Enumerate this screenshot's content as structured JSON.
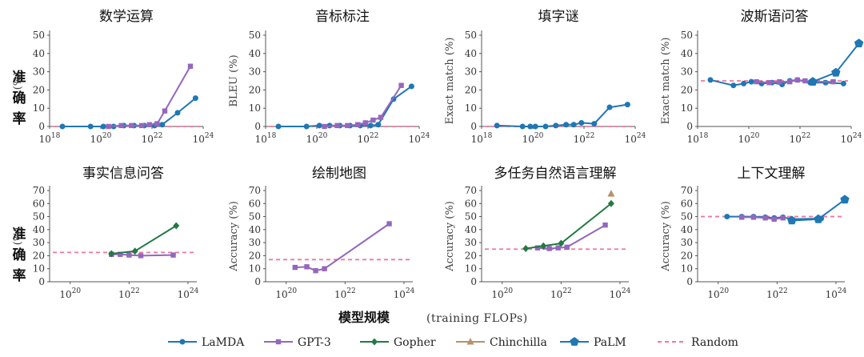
{
  "figure": {
    "row_label_chars": [
      "准",
      "确",
      "率"
    ],
    "x_title": "模型规模",
    "x_subtitle": "(training FLOPs)"
  },
  "colors": {
    "LaMDA": "#1f77b4",
    "GPT-3": "#9467bd",
    "Gopher": "#217a43",
    "Chinchilla": "#b8916a",
    "PaLM": "#1f77b4",
    "Random": "#f0789e"
  },
  "legend": [
    {
      "name": "LaMDA",
      "marker": "circle"
    },
    {
      "name": "GPT-3",
      "marker": "square"
    },
    {
      "name": "Gopher",
      "marker": "diamond"
    },
    {
      "name": "Chinchilla",
      "marker": "triangle"
    },
    {
      "name": "PaLM",
      "marker": "pentagon"
    },
    {
      "name": "Random",
      "marker": "dash"
    }
  ],
  "chart_data": [
    {
      "type": "line",
      "title": "数学运算",
      "ylabel": "(%)",
      "x_scale": "log",
      "xlim_exp": [
        18,
        24
      ],
      "xticks_exp": [
        18,
        20,
        22,
        24
      ],
      "ylim": [
        0,
        50
      ],
      "yticks": [
        0,
        10,
        20,
        30,
        40,
        50
      ],
      "random": 0,
      "series": [
        {
          "name": "LaMDA",
          "x_exp": [
            18.5,
            19.6,
            20.1,
            20.5,
            20.9,
            21.3,
            21.7,
            22.1,
            22.4,
            23.0,
            23.7
          ],
          "y": [
            0,
            0,
            0,
            0,
            0.5,
            0.5,
            0.5,
            0.5,
            1,
            7.5,
            15.5
          ]
        },
        {
          "name": "GPT-3",
          "x_exp": [
            20.3,
            20.8,
            21.2,
            21.6,
            21.9,
            22.2,
            22.5,
            23.5
          ],
          "y": [
            0,
            0.5,
            0.5,
            0.5,
            1,
            1.5,
            8.5,
            33
          ]
        }
      ]
    },
    {
      "type": "line",
      "title": "音标标注",
      "ylabel": "BLEU (%)",
      "x_scale": "log",
      "xlim_exp": [
        18,
        24
      ],
      "xticks_exp": [
        18,
        20,
        22,
        24
      ],
      "ylim": [
        0,
        50
      ],
      "yticks": [
        0,
        10,
        20,
        30,
        40,
        50
      ],
      "random": 0,
      "series": [
        {
          "name": "LaMDA",
          "x_exp": [
            18.5,
            19.6,
            20.1,
            20.5,
            20.9,
            21.3,
            21.7,
            22.1,
            22.4,
            23.0,
            23.7
          ],
          "y": [
            0,
            0,
            0.5,
            0.5,
            0.5,
            0.5,
            0.5,
            0.5,
            1,
            15,
            22
          ]
        },
        {
          "name": "GPT-3",
          "x_exp": [
            20.3,
            20.8,
            21.2,
            21.6,
            21.9,
            22.2,
            22.5,
            23.3
          ],
          "y": [
            0,
            0.5,
            0.5,
            1,
            2,
            3.5,
            5,
            22.5
          ]
        }
      ]
    },
    {
      "type": "line",
      "title": "填字谜",
      "ylabel": "Exact match (%)",
      "x_scale": "log",
      "xlim_exp": [
        18,
        24
      ],
      "xticks_exp": [
        18,
        20,
        22,
        24
      ],
      "ylim": [
        0,
        50
      ],
      "yticks": [
        0,
        10,
        20,
        30,
        40,
        50
      ],
      "random": 0,
      "series": [
        {
          "name": "LaMDA",
          "x_exp": [
            18.6,
            19.6,
            19.9,
            20.1,
            20.5,
            20.9,
            21.3,
            21.6,
            21.9,
            22.4,
            23.0,
            23.7
          ],
          "y": [
            0.5,
            0,
            0,
            0,
            0,
            0.5,
            1,
            1,
            2,
            1.5,
            10.5,
            12
          ]
        }
      ]
    },
    {
      "type": "line",
      "title": "波斯语问答",
      "ylabel": "Exact match (%)",
      "x_scale": "log",
      "xlim_exp": [
        18,
        24
      ],
      "xticks_exp": [
        18,
        20,
        22,
        24
      ],
      "ylim": [
        0,
        50
      ],
      "yticks": [
        0,
        10,
        20,
        30,
        40,
        50
      ],
      "random": 25,
      "series": [
        {
          "name": "LaMDA",
          "x_exp": [
            18.5,
            19.4,
            19.8,
            20.1,
            20.5,
            20.9,
            21.3,
            21.6,
            21.9,
            22.4,
            23.0,
            23.7
          ],
          "y": [
            25.5,
            22.5,
            23.5,
            24.5,
            23.5,
            24,
            23,
            25,
            25.5,
            24,
            24,
            23.5
          ]
        },
        {
          "name": "GPT-3",
          "x_exp": [
            20.3,
            20.8,
            21.2,
            21.6,
            21.9,
            22.2,
            22.5,
            23.3
          ],
          "y": [
            24.5,
            24,
            24.5,
            24.5,
            25.5,
            25,
            24.5,
            24.5
          ]
        },
        {
          "name": "PaLM",
          "x_exp": [
            22.5,
            23.4,
            24.3
          ],
          "y": [
            24.5,
            29.5,
            45.5
          ]
        }
      ]
    },
    {
      "type": "line",
      "title": "事实信息问答",
      "ylabel": "(%)",
      "x_scale": "log",
      "xlim_exp": [
        19.3,
        24.3
      ],
      "xticks_exp": [
        20,
        22,
        24
      ],
      "ylim": [
        0,
        70
      ],
      "yticks": [
        0,
        10,
        20,
        30,
        40,
        50,
        60,
        70
      ],
      "random": 22.5,
      "series": [
        {
          "name": "GPT-3",
          "x_exp": [
            21.4,
            21.7,
            22.0,
            22.4,
            23.5
          ],
          "y": [
            21,
            21,
            20.5,
            20,
            20.5
          ]
        },
        {
          "name": "Gopher",
          "x_exp": [
            21.4,
            22.2,
            23.6
          ],
          "y": [
            21.5,
            23.5,
            43
          ]
        }
      ]
    },
    {
      "type": "line",
      "title": "绘制地图",
      "ylabel": "Accuracy (%)",
      "x_scale": "log",
      "xlim_exp": [
        19.3,
        24.3
      ],
      "xticks_exp": [
        20,
        22,
        24
      ],
      "ylim": [
        0,
        70
      ],
      "yticks": [
        0,
        10,
        20,
        30,
        40,
        50,
        60,
        70
      ],
      "random": 17,
      "series": [
        {
          "name": "GPT-3",
          "x_exp": [
            20.3,
            20.7,
            21.0,
            21.3,
            23.5
          ],
          "y": [
            11,
            11.5,
            8.5,
            10,
            44.5
          ]
        }
      ]
    },
    {
      "type": "line",
      "title": "多任务自然语言理解",
      "ylabel": "Accuracy (%)",
      "x_scale": "log",
      "xlim_exp": [
        19.3,
        24.3
      ],
      "xticks_exp": [
        20,
        22,
        24
      ],
      "ylim": [
        0,
        70
      ],
      "yticks": [
        0,
        10,
        20,
        30,
        40,
        50,
        60,
        70
      ],
      "random": 25,
      "series": [
        {
          "name": "GPT-3",
          "x_exp": [
            21.2,
            21.6,
            21.9,
            22.2,
            23.5
          ],
          "y": [
            26,
            25.5,
            26,
            26.5,
            43.5
          ]
        },
        {
          "name": "Gopher",
          "x_exp": [
            20.8,
            21.4,
            22.0,
            23.7
          ],
          "y": [
            25.5,
            27.5,
            29.5,
            60
          ]
        },
        {
          "name": "Chinchilla",
          "x_exp": [
            23.7
          ],
          "y": [
            67.5
          ]
        }
      ]
    },
    {
      "type": "line",
      "title": "上下文理解",
      "ylabel": "Accuracy (%)",
      "x_scale": "log",
      "xlim_exp": [
        19.3,
        24.3
      ],
      "xticks_exp": [
        20,
        22,
        24
      ],
      "ylim": [
        0,
        70
      ],
      "yticks": [
        0,
        10,
        20,
        30,
        40,
        50,
        60,
        70
      ],
      "random": 50,
      "series": [
        {
          "name": "LaMDA",
          "x_exp": [
            20.3,
            20.8,
            21.2,
            21.6,
            21.9,
            22.2,
            22.5,
            23.5
          ],
          "y": [
            50,
            50,
            50,
            49.5,
            49,
            49.5,
            48,
            48.5
          ]
        },
        {
          "name": "GPT-3",
          "x_exp": [
            20.8,
            21.2,
            21.6,
            21.9,
            22.2
          ],
          "y": [
            49.5,
            49.5,
            49,
            48,
            49
          ]
        },
        {
          "name": "PaLM",
          "x_exp": [
            22.5,
            23.4,
            24.3
          ],
          "y": [
            47,
            48,
            63
          ]
        }
      ]
    }
  ]
}
